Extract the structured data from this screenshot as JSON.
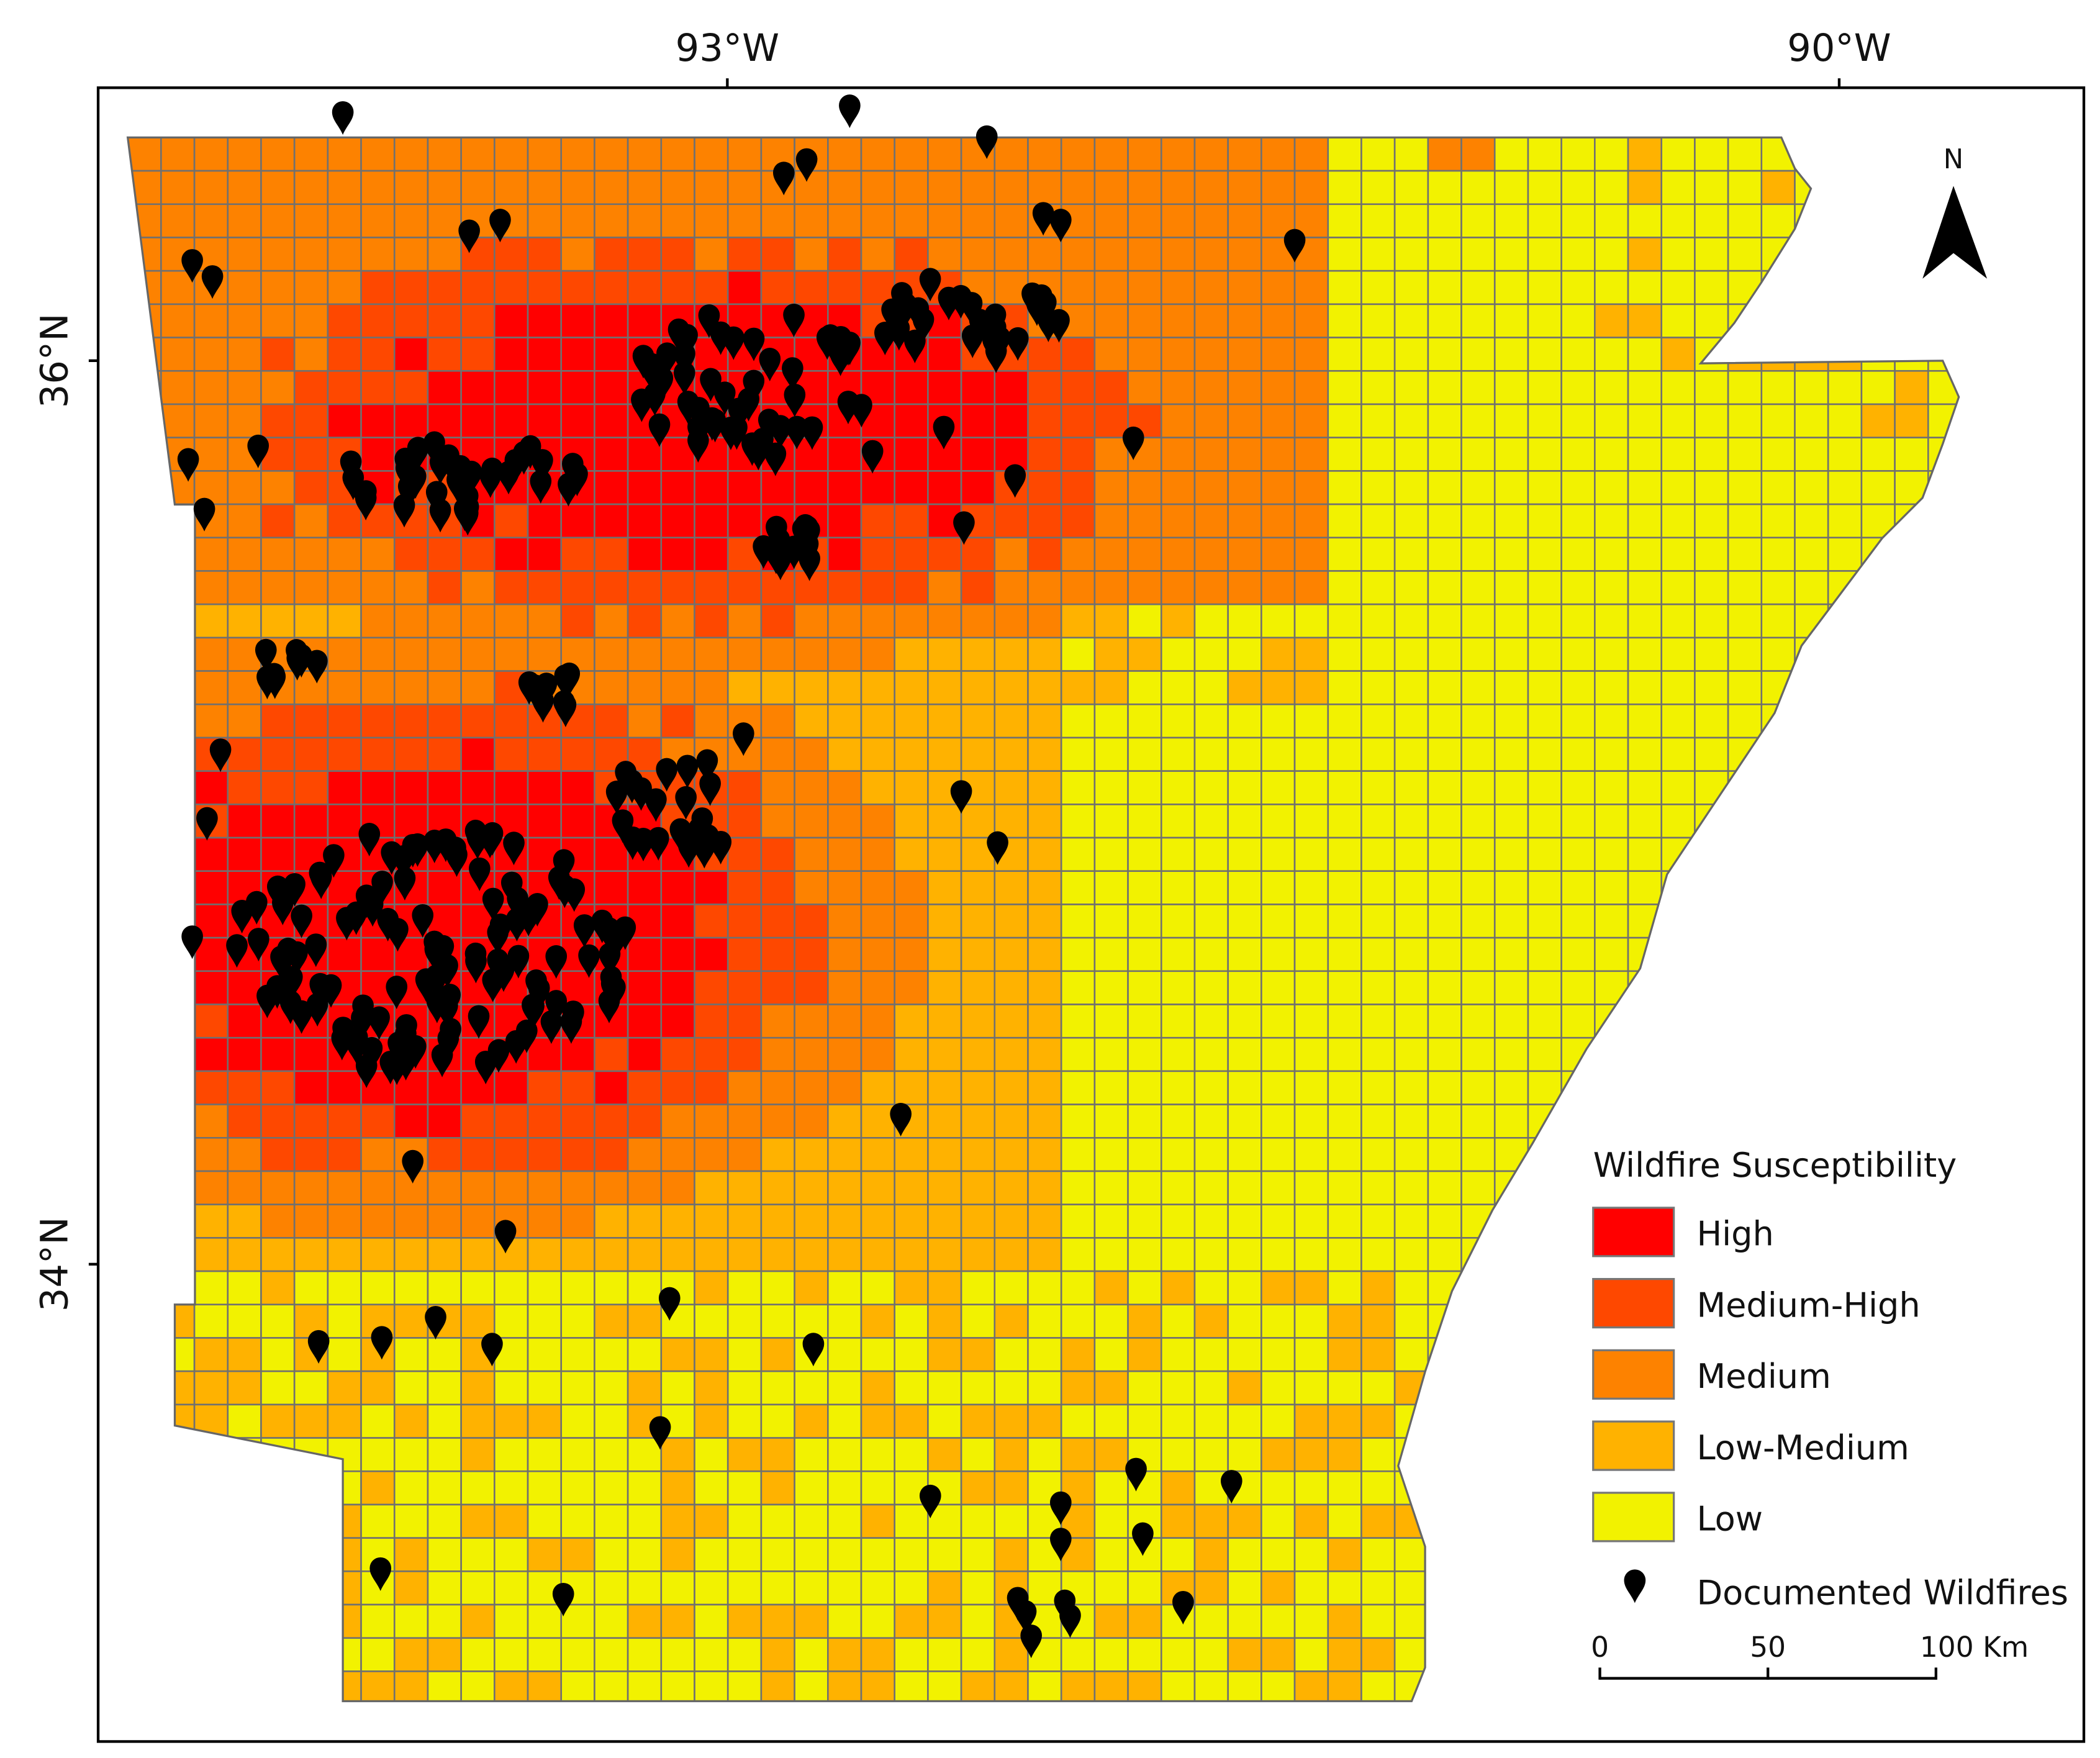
{
  "map": {
    "x_labels": [
      "93°W",
      "90°W"
    ],
    "y_labels": [
      "36°N",
      "34°N"
    ],
    "north": "N",
    "legend": {
      "title": "Wildfire Susceptibility",
      "items": [
        {
          "label": "High",
          "color": "#ff0000"
        },
        {
          "label": "Medium-High",
          "color": "#fe4800"
        },
        {
          "label": "Medium",
          "color": "#fd8200"
        },
        {
          "label": "Low-Medium",
          "color": "#ffb200"
        },
        {
          "label": "Low",
          "color": "#f2f200"
        }
      ],
      "marker_label": "Documented Wildfires"
    },
    "scale_bar": [
      "0",
      "50",
      "100 Km"
    ]
  }
}
